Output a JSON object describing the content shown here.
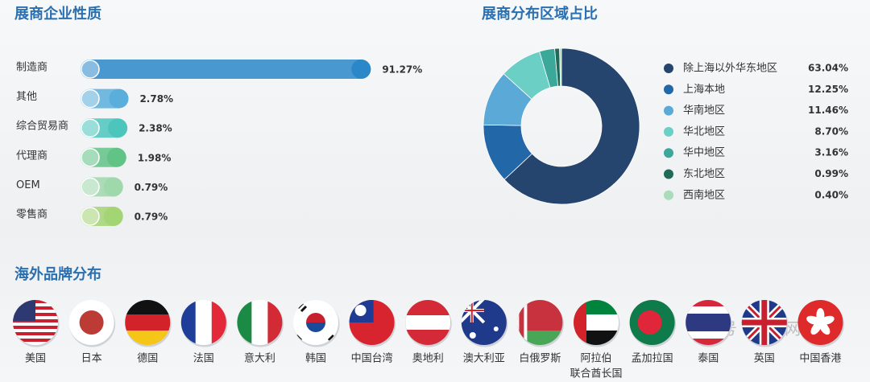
{
  "chart_data": [
    {
      "type": "bar",
      "title": "展商企业性质",
      "categories": [
        "制造商",
        "其他",
        "综合贸易商",
        "代理商",
        "OEM",
        "零售商"
      ],
      "values": [
        91.27,
        2.78,
        2.38,
        1.98,
        0.79,
        0.79
      ],
      "value_labels": [
        "91.27%",
        "2.78%",
        "2.38%",
        "1.98%",
        "0.79%",
        "0.79%"
      ],
      "colors": [
        "#2a87c8",
        "#5aaedb",
        "#4cc5bd",
        "#62c386",
        "#9fd8ab",
        "#a3d574"
      ]
    },
    {
      "type": "pie",
      "title": "展商分布区域占比",
      "donut": true,
      "categories": [
        "除上海以外华东地区",
        "上海本地",
        "华南地区",
        "华北地区",
        "华中地区",
        "东北地区",
        "西南地区"
      ],
      "values": [
        63.04,
        12.25,
        11.46,
        8.7,
        3.16,
        0.99,
        0.4
      ],
      "value_labels": [
        "63.04%",
        "12.25%",
        "11.46%",
        "8.70%",
        "3.16%",
        "0.99%",
        "0.40%"
      ],
      "colors": [
        "#26456e",
        "#2267a8",
        "#5aa9d7",
        "#6ccfc5",
        "#3ba89a",
        "#1f6b58",
        "#a9dcb8"
      ]
    }
  ],
  "brands": {
    "title": "海外品牌分布",
    "countries": [
      [
        "美国"
      ],
      [
        "日本"
      ],
      [
        "德国"
      ],
      [
        "法国"
      ],
      [
        "意大利"
      ],
      [
        "韩国"
      ],
      [
        "中国台湾"
      ],
      [
        "奥地利"
      ],
      [
        "澳大利亚"
      ],
      [
        "白俄罗斯"
      ],
      [
        "阿拉伯",
        "联合酋长国"
      ],
      [
        "孟加拉国"
      ],
      [
        "泰国"
      ],
      [
        "英国"
      ],
      [
        "中国香港"
      ]
    ]
  },
  "watermark": "公众号 · 上展网"
}
